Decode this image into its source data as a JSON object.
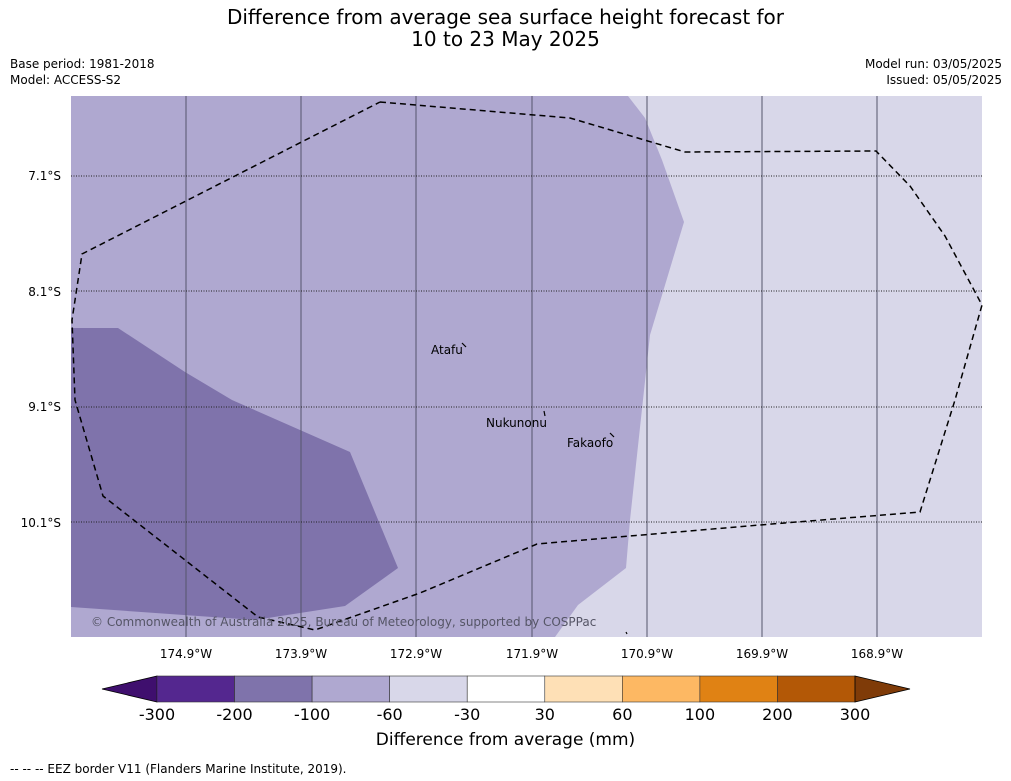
{
  "title_line1": "Difference from average sea surface height forecast for",
  "title_line2": "10 to 23 May 2025",
  "meta_left": [
    "Base period: 1981-2018",
    "Model: ACCESS-S2"
  ],
  "meta_right": [
    "Model run: 03/05/2025",
    "Issued: 05/05/2025"
  ],
  "lat_labels": [
    "7.1°S",
    "8.1°S",
    "9.1°S",
    "10.1°S"
  ],
  "lon_labels": [
    "174.9°W",
    "173.9°W",
    "172.9°W",
    "171.9°W",
    "170.9°W",
    "169.9°W",
    "168.9°W"
  ],
  "places": [
    {
      "name": "Atafu"
    },
    {
      "name": "Nukunonu"
    },
    {
      "name": "Fakaofo"
    }
  ],
  "credit": "© Commonwealth of Australia 2025, Bureau of Meteorology, supported by COSPPac",
  "colorbar": {
    "label": "Difference from average (mm)",
    "ticks": [
      "-300",
      "-200",
      "-100",
      "-60",
      "-30",
      "30",
      "60",
      "100",
      "200",
      "300"
    ],
    "colors": [
      "#3f0f6e",
      "#54278f",
      "#7f73ab",
      "#afa8d0",
      "#d8d7e9",
      "#ffffff",
      "#fee0b6",
      "#fdb863",
      "#e08214",
      "#b35806",
      "#7f3b08"
    ]
  },
  "footnote": "--  --  -- EEZ border V11 (Flanders Marine Institute, 2019).",
  "shading": {
    "light": "#d8d7e9",
    "mid": "#afa8d0",
    "dark": "#7f73ab"
  }
}
